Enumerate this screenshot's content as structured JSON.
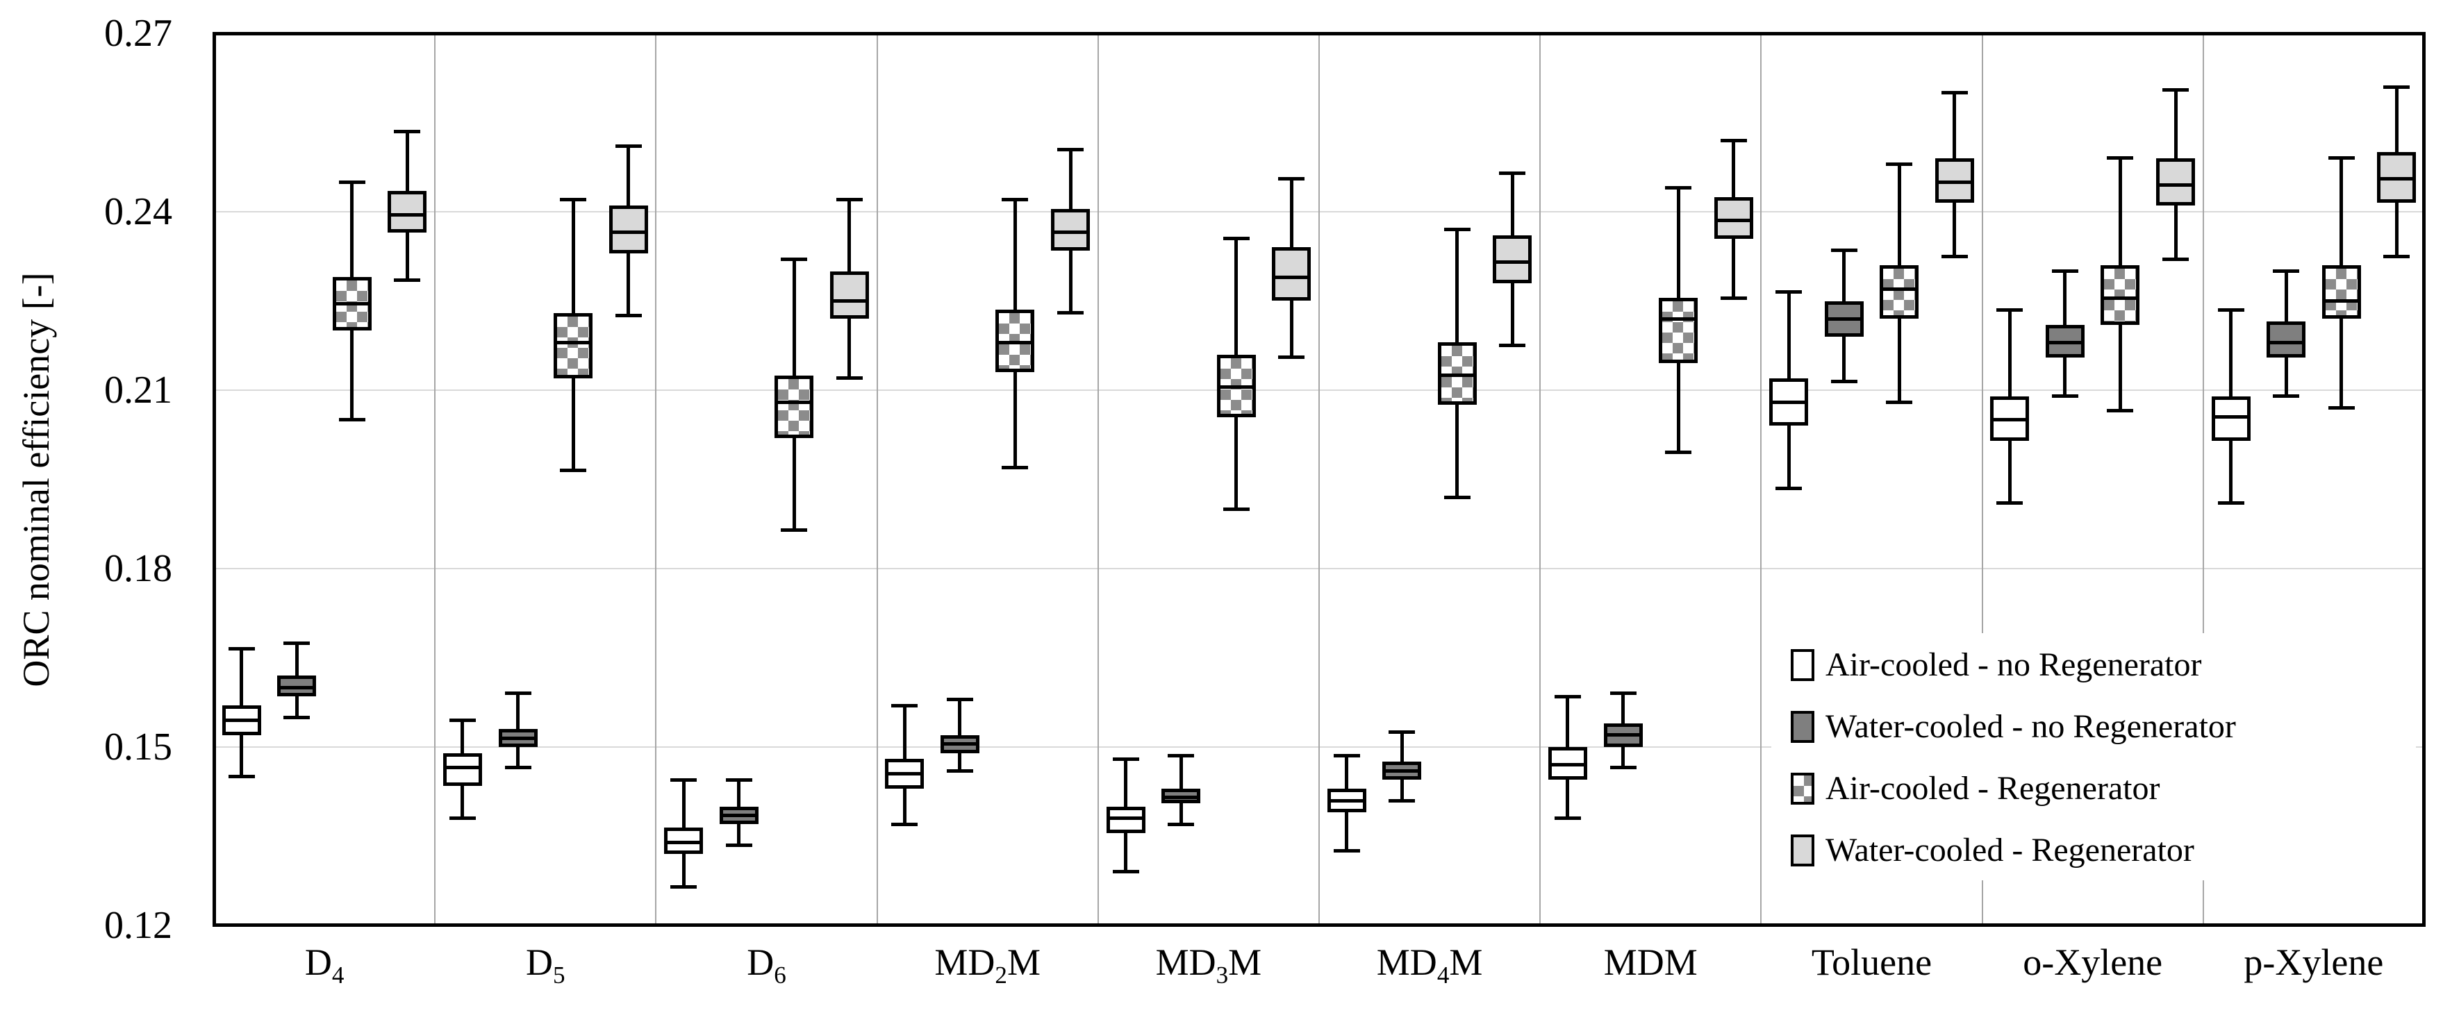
{
  "figure": {
    "background": "#ffffff",
    "title": ""
  },
  "y_axis": {
    "title": "ORC nominal efficiency [-]",
    "min": 0.12,
    "max": 0.27,
    "tick_step": 0.03,
    "tick_labels": [
      "0.27",
      "0.24",
      "0.21",
      "0.18",
      "0.15",
      "0.12"
    ],
    "tick_values": [
      0.27,
      0.24,
      0.21,
      0.18,
      0.15,
      0.12
    ]
  },
  "x_axis": {
    "category_display": [
      {
        "pre": "D",
        "sub": "4",
        "post": ""
      },
      {
        "pre": "D",
        "sub": "5",
        "post": ""
      },
      {
        "pre": "D",
        "sub": "6",
        "post": ""
      },
      {
        "pre": "MD",
        "sub": "2",
        "post": "M"
      },
      {
        "pre": "MD",
        "sub": "3",
        "post": "M"
      },
      {
        "pre": "MD",
        "sub": "4",
        "post": "M"
      },
      {
        "pre": "MDM",
        "sub": "",
        "post": ""
      },
      {
        "pre": "Toluene",
        "sub": "",
        "post": ""
      },
      {
        "pre": "o-Xylene",
        "sub": "",
        "post": ""
      },
      {
        "pre": "p-Xylene",
        "sub": "",
        "post": ""
      }
    ]
  },
  "legend": {
    "position": "inside-bottom-right",
    "entries": [
      {
        "label": "Air-cooled - no Regenerator",
        "fill": "#ffffff",
        "pattern": "solid"
      },
      {
        "label": "Water-cooled - no Regenerator",
        "fill": "#7f7f7f",
        "pattern": "solid"
      },
      {
        "label": "Air-cooled - Regenerator",
        "fill": "#ffffff",
        "pattern": "checker",
        "pattern_color": "#8c8c8c"
      },
      {
        "label": "Water-cooled - Regenerator",
        "fill": "#d9d9d9",
        "pattern": "solid"
      }
    ]
  },
  "chart_data": {
    "type": "box",
    "title": "",
    "xlabel": "",
    "ylabel": "ORC nominal efficiency [-]",
    "ylim": [
      0.12,
      0.27
    ],
    "yticks": [
      0.12,
      0.15,
      0.18,
      0.21,
      0.24,
      0.27
    ],
    "grid": {
      "horizontal_at": [
        0.15,
        0.18,
        0.21,
        0.24
      ],
      "vertical_category_separators": true
    },
    "legend_position": "inside bottom-right",
    "box_value_format": "[whisker_low, q1, median, q3, whisker_high]",
    "categories": [
      "D4",
      "D5",
      "D6",
      "MD2M",
      "MD3M",
      "MD4M",
      "MDM",
      "Toluene",
      "o-Xylene",
      "p-Xylene"
    ],
    "series": [
      {
        "name": "Air-cooled - no Regenerator",
        "fill": "#ffffff",
        "pattern": "solid",
        "values": [
          [
            0.145,
            0.152,
            0.1545,
            0.157,
            0.1665
          ],
          [
            0.138,
            0.1435,
            0.1465,
            0.149,
            0.1545
          ],
          [
            0.1265,
            0.132,
            0.134,
            0.1365,
            0.1445
          ],
          [
            0.137,
            0.143,
            0.1455,
            0.148,
            0.157
          ],
          [
            0.129,
            0.1355,
            0.138,
            0.14,
            0.148
          ],
          [
            0.1325,
            0.139,
            0.141,
            0.143,
            0.1485
          ],
          [
            0.138,
            0.1445,
            0.147,
            0.15,
            0.1585
          ],
          [
            0.1935,
            0.204,
            0.208,
            0.212,
            0.2265
          ],
          [
            0.191,
            0.2015,
            0.205,
            0.209,
            0.2235
          ],
          [
            0.191,
            0.2015,
            0.2055,
            0.209,
            0.2235
          ]
        ]
      },
      {
        "name": "Water-cooled - no Regenerator",
        "fill": "#7f7f7f",
        "pattern": "solid",
        "values": [
          [
            0.155,
            0.1585,
            0.16,
            0.162,
            0.1675
          ],
          [
            0.1465,
            0.15,
            0.1515,
            0.153,
            0.159
          ],
          [
            0.1335,
            0.137,
            0.1385,
            0.14,
            0.1445
          ],
          [
            0.146,
            0.149,
            0.1505,
            0.152,
            0.158
          ],
          [
            0.137,
            0.1405,
            0.1415,
            0.143,
            0.1485
          ],
          [
            0.141,
            0.1445,
            0.146,
            0.1475,
            0.1525
          ],
          [
            0.1465,
            0.15,
            0.152,
            0.154,
            0.159
          ],
          [
            0.2115,
            0.219,
            0.222,
            0.225,
            0.2335
          ],
          [
            0.209,
            0.2155,
            0.218,
            0.221,
            0.23
          ],
          [
            0.209,
            0.2155,
            0.218,
            0.2215,
            0.23
          ]
        ]
      },
      {
        "name": "Air-cooled - Regenerator",
        "fill": "#ffffff",
        "pattern": "checker",
        "pattern_color": "#8c8c8c",
        "values": [
          [
            0.205,
            0.22,
            0.2245,
            0.229,
            0.245
          ],
          [
            0.1965,
            0.212,
            0.218,
            0.223,
            0.242
          ],
          [
            0.1865,
            0.202,
            0.208,
            0.2125,
            0.232
          ],
          [
            0.197,
            0.213,
            0.218,
            0.2235,
            0.242
          ],
          [
            0.19,
            0.2055,
            0.2105,
            0.216,
            0.2355
          ],
          [
            0.192,
            0.2075,
            0.2125,
            0.218,
            0.237
          ],
          [
            0.1995,
            0.2145,
            0.222,
            0.2255,
            0.244
          ],
          [
            0.208,
            0.222,
            0.227,
            0.231,
            0.248
          ],
          [
            0.2065,
            0.221,
            0.2255,
            0.231,
            0.249
          ],
          [
            0.207,
            0.222,
            0.225,
            0.231,
            0.249
          ]
        ]
      },
      {
        "name": "Water-cooled - Regenerator",
        "fill": "#d9d9d9",
        "pattern": "solid",
        "values": [
          [
            0.2285,
            0.2365,
            0.2395,
            0.2435,
            0.2535
          ],
          [
            0.2225,
            0.233,
            0.2365,
            0.241,
            0.251
          ],
          [
            0.212,
            0.222,
            0.225,
            0.23,
            0.242
          ],
          [
            0.223,
            0.2335,
            0.2365,
            0.2405,
            0.2505
          ],
          [
            0.2155,
            0.225,
            0.229,
            0.234,
            0.2455
          ],
          [
            0.2175,
            0.228,
            0.2315,
            0.236,
            0.2465
          ],
          [
            0.2255,
            0.2355,
            0.2385,
            0.2425,
            0.252
          ],
          [
            0.2325,
            0.2415,
            0.245,
            0.249,
            0.26
          ],
          [
            0.232,
            0.241,
            0.2445,
            0.249,
            0.2605
          ],
          [
            0.2325,
            0.2415,
            0.2455,
            0.25,
            0.261
          ]
        ]
      }
    ]
  }
}
